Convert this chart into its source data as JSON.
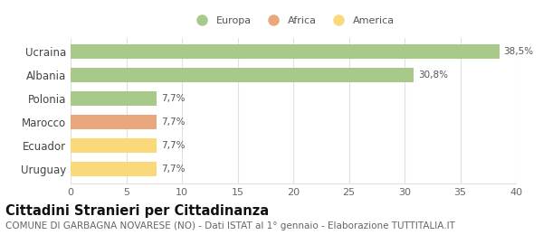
{
  "categories": [
    "Ucraina",
    "Albania",
    "Polonia",
    "Marocco",
    "Ecuador",
    "Uruguay"
  ],
  "values": [
    38.5,
    30.8,
    7.7,
    7.7,
    7.7,
    7.7
  ],
  "labels": [
    "38,5%",
    "30,8%",
    "7,7%",
    "7,7%",
    "7,7%",
    "7,7%"
  ],
  "bar_colors": [
    "#a8c98a",
    "#a8c98a",
    "#a8c98a",
    "#e8a87c",
    "#f9d97a",
    "#f9d97a"
  ],
  "legend_items": [
    {
      "label": "Europa",
      "color": "#a8c98a"
    },
    {
      "label": "Africa",
      "color": "#e8a87c"
    },
    {
      "label": "America",
      "color": "#f9d97a"
    }
  ],
  "xlim": [
    0,
    40
  ],
  "xticks": [
    0,
    5,
    10,
    15,
    20,
    25,
    30,
    35,
    40
  ],
  "title": "Cittadini Stranieri per Cittadinanza",
  "subtitle": "COMUNE DI GARBAGNA NOVARESE (NO) - Dati ISTAT al 1° gennaio - Elaborazione TUTTITALIA.IT",
  "title_fontsize": 10.5,
  "subtitle_fontsize": 7.5,
  "label_fontsize": 7.5,
  "ytick_fontsize": 8.5,
  "xtick_fontsize": 8,
  "background_color": "#ffffff",
  "bar_edge_color": "none",
  "grid_color": "#e0e0e0",
  "bar_height": 0.62
}
